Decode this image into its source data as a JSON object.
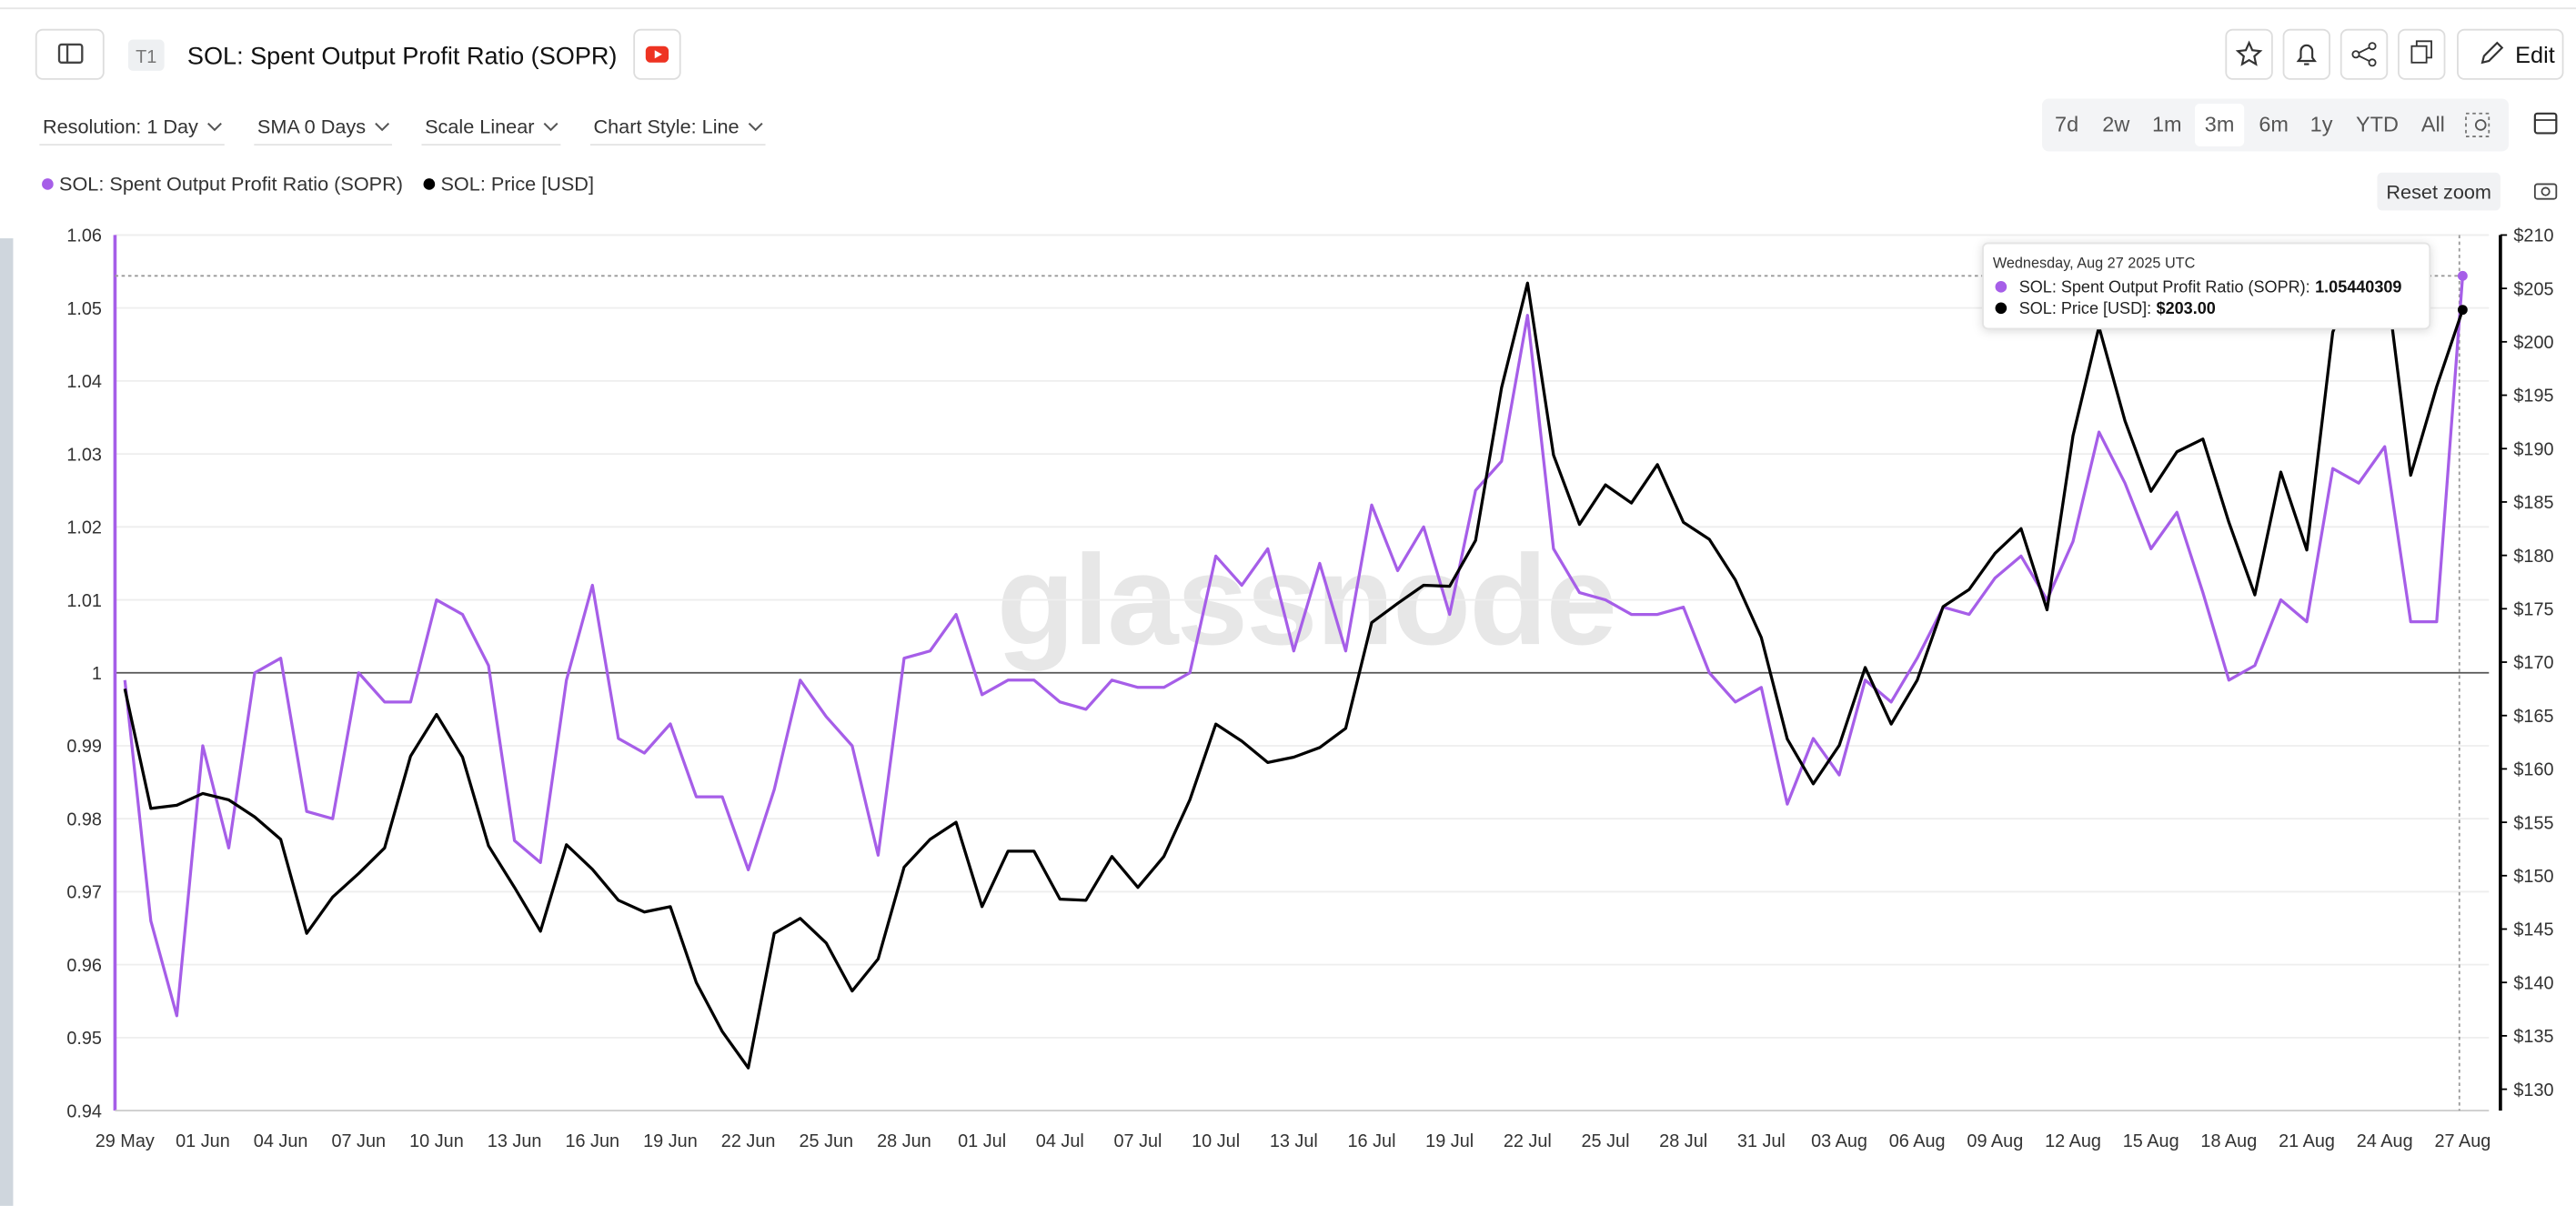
{
  "header": {
    "badge": "T1",
    "title": "SOL: Spent Output Profit Ratio (SOPR)",
    "edit": "Edit"
  },
  "controls": [
    "Resolution: 1 Day",
    "SMA 0 Days",
    "Scale Linear",
    "Chart Style: Line"
  ],
  "ranges": {
    "options": [
      "7d",
      "2w",
      "1m",
      "3m",
      "6m",
      "1y",
      "YTD",
      "All"
    ],
    "selected": "3m"
  },
  "reset_zoom": "Reset zoom",
  "watermark": "glassnode",
  "tooltip": {
    "date": "Wednesday, Aug 27 2025 UTC",
    "rows": [
      {
        "label": "SOL: Spent Output Profit Ratio (SOPR):"
      },
      {
        "label": "SOL: Price [USD]:",
        "value": "$203.00"
      }
    ]
  },
  "chart_data": {
    "type": "line",
    "categories": [
      "29 May",
      null,
      null,
      "01 Jun",
      null,
      null,
      "04 Jun",
      null,
      null,
      "07 Jun",
      null,
      null,
      "10 Jun",
      null,
      null,
      "13 Jun",
      null,
      null,
      "16 Jun",
      null,
      null,
      "19 Jun",
      null,
      null,
      "22 Jun",
      null,
      null,
      "25 Jun",
      null,
      null,
      "28 Jun",
      null,
      null,
      "01 Jul",
      null,
      null,
      "04 Jul",
      null,
      null,
      "07 Jul",
      null,
      null,
      "10 Jul",
      null,
      null,
      "13 Jul",
      null,
      null,
      "16 Jul",
      null,
      null,
      "19 Jul",
      null,
      null,
      "22 Jul",
      null,
      null,
      "25 Jul",
      null,
      null,
      "28 Jul",
      null,
      null,
      "31 Jul",
      null,
      null,
      "03 Aug",
      null,
      null,
      "06 Aug",
      null,
      null,
      "09 Aug",
      null,
      null,
      "12 Aug",
      null,
      null,
      "15 Aug",
      null,
      null,
      "18 Aug",
      null,
      null,
      "21 Aug",
      null,
      null,
      "24 Aug",
      null,
      null,
      "27 Aug"
    ],
    "series": [
      {
        "name": "SOL: Spent Output Profit Ratio (SOPR)",
        "color": "#a65ee8",
        "values": [
          0.999,
          0.966,
          0.953,
          0.99,
          0.976,
          1.0,
          1.002,
          0.981,
          0.98,
          1.0,
          0.996,
          0.996,
          1.01,
          1.008,
          1.001,
          0.977,
          0.974,
          0.999,
          1.012,
          0.991,
          0.989,
          0.993,
          0.983,
          0.983,
          0.973,
          0.984,
          0.999,
          0.994,
          0.99,
          0.975,
          1.002,
          1.003,
          1.008,
          0.997,
          0.999,
          0.999,
          0.996,
          0.995,
          0.999,
          0.998,
          0.998,
          1.0,
          1.016,
          1.012,
          1.017,
          1.003,
          1.015,
          1.003,
          1.023,
          1.014,
          1.02,
          1.008,
          1.025,
          1.029,
          1.049,
          1.017,
          1.011,
          1.01,
          1.008,
          1.008,
          1.009,
          1.0,
          0.996,
          0.998,
          0.982,
          0.991,
          0.986,
          0.999,
          0.996,
          1.002,
          1.009,
          1.008,
          1.013,
          1.016,
          1.01,
          1.018,
          1.033,
          1.026,
          1.017,
          1.022,
          1.011,
          0.999,
          1.001,
          1.01,
          1.007,
          1.028,
          1.026,
          1.031,
          1.007,
          1.007,
          1.05440309
        ]
      },
      {
        "name": "SOL: Price [USD]",
        "color": "#000000",
        "axis": "y2",
        "values": [
          167.5,
          156.3,
          156.6,
          157.7,
          157.1,
          155.5,
          153.4,
          144.6,
          148.0,
          150.2,
          152.6,
          161.2,
          165.1,
          161.1,
          152.8,
          148.9,
          144.8,
          152.9,
          150.6,
          147.7,
          146.6,
          147.1,
          140.0,
          135.4,
          132.0,
          144.6,
          146.0,
          143.7,
          139.2,
          142.2,
          150.8,
          153.4,
          155.0,
          147.1,
          152.3,
          152.3,
          147.8,
          147.7,
          151.8,
          148.9,
          151.8,
          157.1,
          164.2,
          162.6,
          160.6,
          161.1,
          162.0,
          163.8,
          173.7,
          175.5,
          177.2,
          177.1,
          181.4,
          195.7,
          205.5,
          189.4,
          182.9,
          186.6,
          184.9,
          188.5,
          183.1,
          181.5,
          177.7,
          172.3,
          162.8,
          158.6,
          162.2,
          169.5,
          164.2,
          168.3,
          175.2,
          176.8,
          180.2,
          182.5,
          174.9,
          191.2,
          201.4,
          192.6,
          186.0,
          189.7,
          190.9,
          183.1,
          176.3,
          187.8,
          180.5,
          200.9,
          207.0,
          207.0,
          187.5,
          195.8,
          203.0
        ]
      }
    ],
    "ylim": [
      0.94,
      1.06
    ],
    "yticks": [
      0.94,
      0.95,
      0.96,
      0.97,
      0.98,
      0.99,
      1,
      1.01,
      1.02,
      1.03,
      1.04,
      1.05,
      1.06
    ],
    "y2lim": [
      128,
      210
    ],
    "y2ticks": [
      {
        "value": 130,
        "label": "$130"
      },
      {
        "value": 135,
        "label": "$135"
      },
      {
        "value": 140,
        "label": "$140"
      },
      {
        "value": 145,
        "label": "$145"
      },
      {
        "value": 150,
        "label": "$150"
      },
      {
        "value": 155,
        "label": "$155"
      },
      {
        "value": 160,
        "label": "$160"
      },
      {
        "value": 165,
        "label": "$165"
      },
      {
        "value": 170,
        "label": "$170"
      },
      {
        "value": 175,
        "label": "$175"
      },
      {
        "value": 180,
        "label": "$180"
      },
      {
        "value": 185,
        "label": "$185"
      },
      {
        "value": 190,
        "label": "$190"
      },
      {
        "value": 195,
        "label": "$195"
      },
      {
        "value": 200,
        "label": "$200"
      },
      {
        "value": 205,
        "label": "$205"
      },
      {
        "value": 210,
        "label": "$210"
      }
    ],
    "grid": true,
    "reference_line": 1
  }
}
